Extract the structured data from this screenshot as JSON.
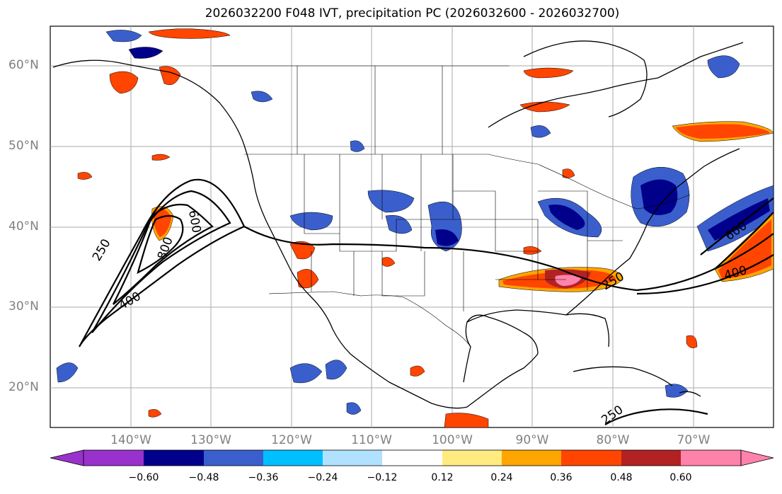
{
  "title": "2026032200 F048 IVT, precipitation PC (2026032600 - 2026032700)",
  "lat_labels": [
    "60°N",
    "50°N",
    "40°N",
    "30°N",
    "20°N"
  ],
  "lon_labels": [
    "140°W",
    "130°W",
    "120°W",
    "110°W",
    "100°W",
    "90°W",
    "80°W",
    "70°W"
  ],
  "ivt_contour_labels": [
    "250",
    "400",
    "600",
    "800",
    "600",
    "400",
    "250",
    "250"
  ],
  "colorbar": {
    "tick_labels": [
      "−0.60",
      "−0.48",
      "−0.36",
      "−0.24",
      "−0.12",
      "0.12",
      "0.24",
      "0.36",
      "0.48",
      "0.60"
    ],
    "colors": [
      "#9932cc",
      "#00008b",
      "#3a5fcd",
      "#00bfff",
      "#b0e2ff",
      "#ffffff",
      "#ffeb7f",
      "#ffa500",
      "#ff4500",
      "#b22222",
      "#ff82ab"
    ]
  },
  "precip_colors": {
    "neg_strong": "#00008b",
    "neg_mid": "#3a5fcd",
    "neg_weak": "#00bfff",
    "pos_weak": "#ffa500",
    "pos_mid": "#ff4500",
    "pos_strong": "#b22222",
    "pos_max": "#ff82ab"
  }
}
